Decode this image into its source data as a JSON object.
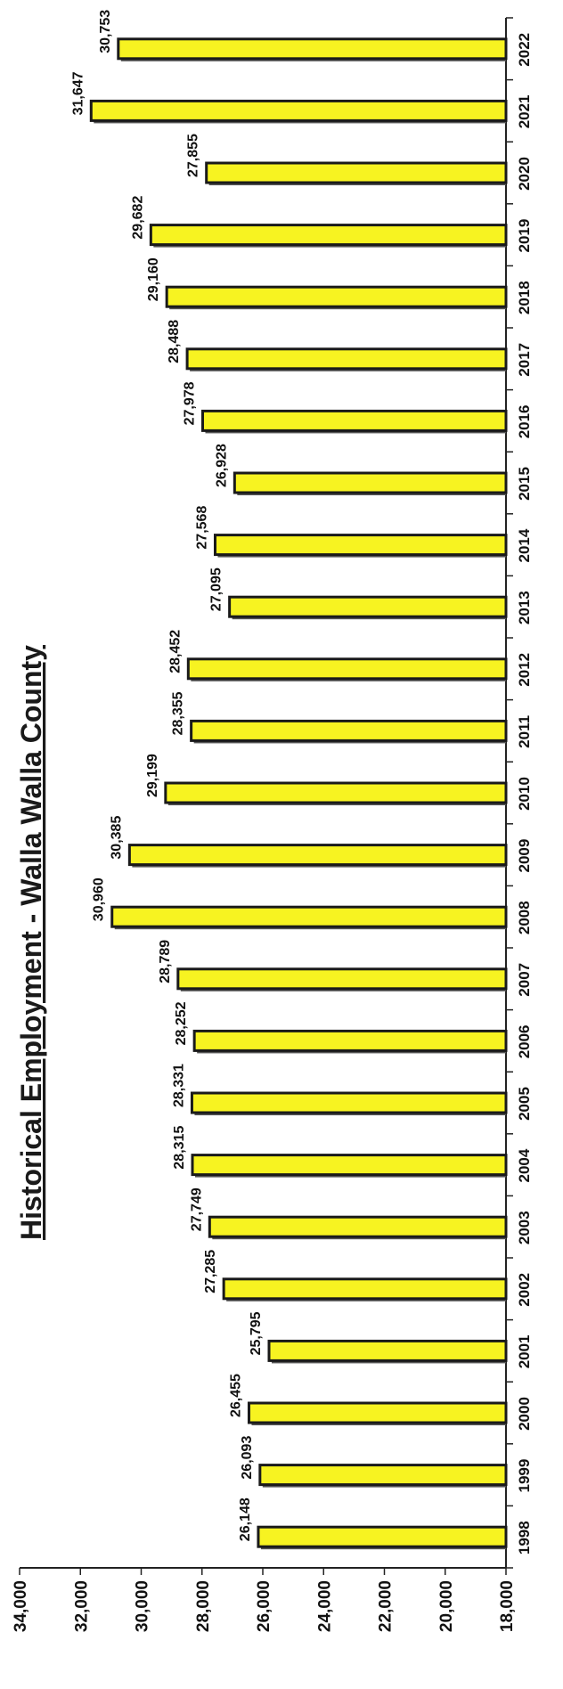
{
  "chart_data": {
    "type": "bar",
    "orientation": "horizontal",
    "title": "Historical Employment - Walla Walla County",
    "xlabel": "",
    "ylabel": "",
    "categories": [
      "1998",
      "1999",
      "2000",
      "2001",
      "2002",
      "2003",
      "2004",
      "2005",
      "2006",
      "2007",
      "2008",
      "2009",
      "2010",
      "2011",
      "2012",
      "2013",
      "2014",
      "2015",
      "2016",
      "2017",
      "2018",
      "2019",
      "2020",
      "2021",
      "2022"
    ],
    "values": [
      26148,
      26093,
      26455,
      25795,
      27285,
      27749,
      28315,
      28331,
      28252,
      28789,
      30960,
      30385,
      29199,
      28355,
      28452,
      27095,
      27568,
      26928,
      27978,
      28488,
      29160,
      29682,
      27855,
      31647,
      30753
    ],
    "value_labels": [
      "26,148",
      "26,093",
      "26,455",
      "25,795",
      "27,285",
      "27,749",
      "28,315",
      "28,331",
      "28,252",
      "28,789",
      "30,960",
      "30,385",
      "29,199",
      "28,355",
      "28,452",
      "27,095",
      "27,568",
      "26,928",
      "27,978",
      "28,488",
      "29,160",
      "29,682",
      "27,855",
      "31,647",
      "30,753"
    ],
    "value_axis_range": [
      18000,
      34000
    ],
    "value_ticks": [
      "18,000",
      "20,000",
      "22,000",
      "24,000",
      "26,000",
      "28,000",
      "30,000",
      "32,000",
      "34,000"
    ],
    "grid": false,
    "legend": "none",
    "colors": {
      "bar_fill": "#f7f321",
      "bar_stroke": "#1a1a1a",
      "bar_shadow": "#555555",
      "axis": "#222222",
      "text": "#111111"
    }
  }
}
